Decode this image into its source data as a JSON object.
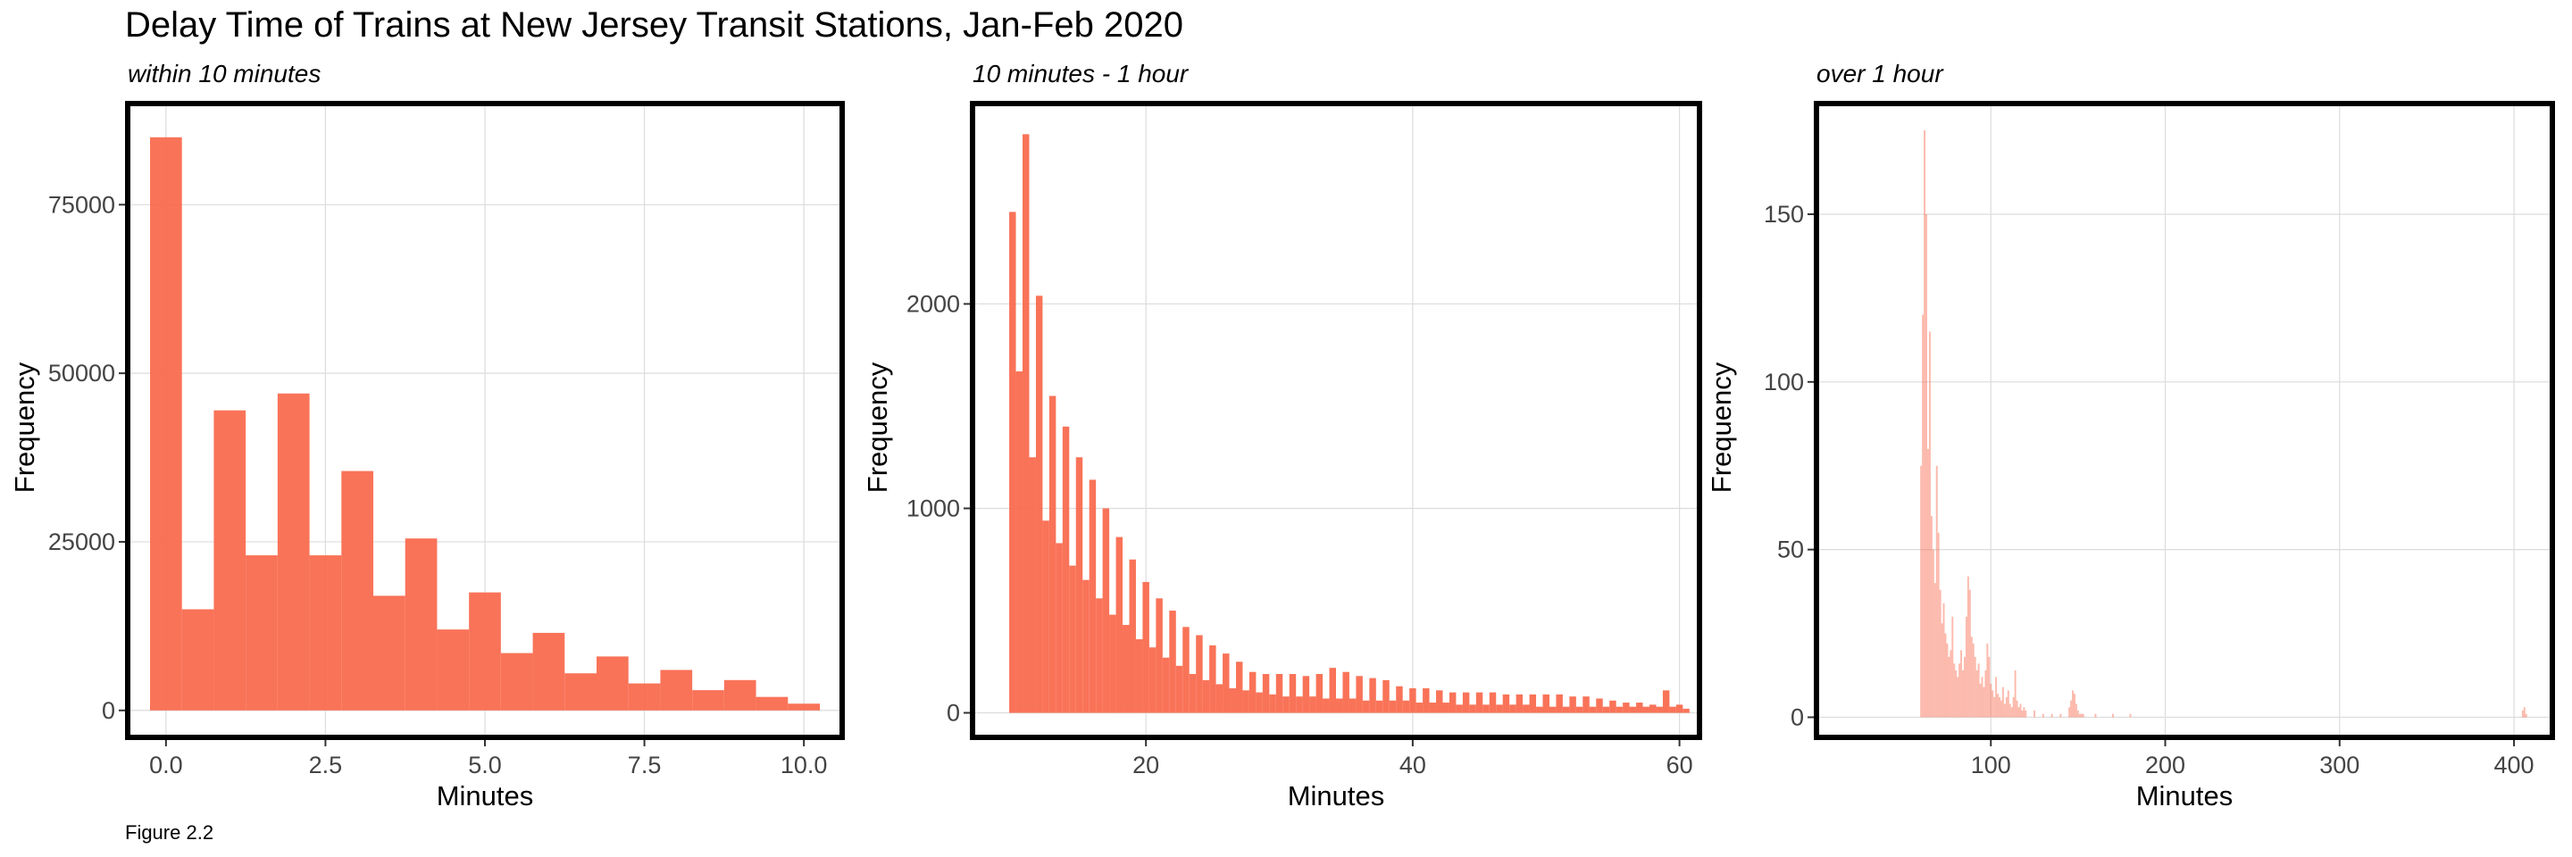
{
  "title": "Delay Time of Trains at New Jersey Transit Stations, Jan-Feb 2020",
  "caption": "Figure 2.2",
  "colors": {
    "bar": "#f8674a",
    "frame": "#000000",
    "grid": "#dcdcdc"
  },
  "chart_data": [
    {
      "type": "bar",
      "subtitle": "within 10 minutes",
      "xlabel": "Minutes",
      "ylabel": "Frequency",
      "xlim": [
        -0.6,
        10.6
      ],
      "ylim": [
        -4000,
        90000
      ],
      "xticks": [
        "0.0",
        "2.5",
        "5.0",
        "7.5",
        "10.0"
      ],
      "xtick_values": [
        0,
        2.5,
        5,
        7.5,
        10
      ],
      "yticks": [
        "0",
        "25000",
        "50000",
        "75000"
      ],
      "ytick_values": [
        0,
        25000,
        50000,
        75000
      ],
      "bin_width": 0.5,
      "x": [
        0,
        0.5,
        1,
        1.5,
        2,
        2.5,
        3,
        3.5,
        4,
        4.5,
        5,
        5.5,
        6,
        6.5,
        7,
        7.5,
        8,
        8.5,
        9,
        9.5,
        10
      ],
      "values": [
        85000,
        15000,
        44500,
        23000,
        47000,
        23000,
        35500,
        17000,
        25500,
        12000,
        17500,
        8500,
        11500,
        5500,
        8000,
        4000,
        6000,
        3000,
        4500,
        2000,
        1000
      ],
      "grid": true,
      "legend": "none"
    },
    {
      "type": "bar",
      "subtitle": "10 minutes - 1 hour",
      "xlabel": "Minutes",
      "ylabel": "Frequency",
      "xlim": [
        7,
        61.5
      ],
      "ylim": [
        -120,
        2980
      ],
      "xticks": [
        "20",
        "40",
        "60"
      ],
      "xtick_values": [
        20,
        40,
        60
      ],
      "yticks": [
        "0",
        "1000",
        "2000"
      ],
      "ytick_values": [
        0,
        1000,
        2000
      ],
      "bin_width": 0.5,
      "x": [
        10,
        10.5,
        11,
        11.5,
        12,
        12.5,
        13,
        13.5,
        14,
        14.5,
        15,
        15.5,
        16,
        16.5,
        17,
        17.5,
        18,
        18.5,
        19,
        19.5,
        20,
        20.5,
        21,
        21.5,
        22,
        22.5,
        23,
        23.5,
        24,
        24.5,
        25,
        25.5,
        26,
        26.5,
        27,
        27.5,
        28,
        28.5,
        29,
        29.5,
        30,
        30.5,
        31,
        31.5,
        32,
        32.5,
        33,
        33.5,
        34,
        34.5,
        35,
        35.5,
        36,
        36.5,
        37,
        37.5,
        38,
        38.5,
        39,
        39.5,
        40,
        40.5,
        41,
        41.5,
        42,
        42.5,
        43,
        43.5,
        44,
        44.5,
        45,
        45.5,
        46,
        46.5,
        47,
        47.5,
        48,
        48.5,
        49,
        49.5,
        50,
        50.5,
        51,
        51.5,
        52,
        52.5,
        53,
        53.5,
        54,
        54.5,
        55,
        55.5,
        56,
        56.5,
        57,
        57.5,
        58,
        58.5,
        59,
        59.5,
        60,
        60.5
      ],
      "values": [
        2450,
        1670,
        2830,
        1250,
        2040,
        940,
        1550,
        830,
        1400,
        720,
        1250,
        650,
        1140,
        560,
        1000,
        480,
        860,
        430,
        750,
        360,
        640,
        320,
        560,
        270,
        500,
        230,
        420,
        190,
        380,
        160,
        330,
        140,
        290,
        120,
        250,
        110,
        200,
        100,
        190,
        90,
        190,
        80,
        190,
        80,
        180,
        80,
        190,
        70,
        220,
        70,
        200,
        70,
        180,
        60,
        170,
        60,
        160,
        60,
        130,
        60,
        120,
        50,
        120,
        50,
        110,
        50,
        100,
        40,
        100,
        40,
        100,
        40,
        100,
        40,
        90,
        40,
        90,
        40,
        90,
        30,
        90,
        30,
        90,
        30,
        80,
        30,
        80,
        30,
        70,
        30,
        60,
        30,
        50,
        30,
        50,
        30,
        40,
        30,
        110,
        30,
        40,
        20
      ],
      "grid": true,
      "legend": "none"
    },
    {
      "type": "bar",
      "subtitle": "over 1 hour",
      "xlabel": "Minutes",
      "ylabel": "Frequency",
      "xlim": [
        0,
        422
      ],
      "ylim": [
        -6,
        183
      ],
      "xticks": [
        "100",
        "200",
        "300",
        "400"
      ],
      "xtick_values": [
        100,
        200,
        300,
        400
      ],
      "yticks": [
        "0",
        "50",
        "100",
        "150"
      ],
      "ytick_values": [
        0,
        50,
        100,
        150
      ],
      "bin_width": 1,
      "x": [
        60,
        61,
        62,
        63,
        64,
        65,
        66,
        67,
        68,
        69,
        70,
        71,
        72,
        73,
        74,
        75,
        76,
        77,
        78,
        79,
        80,
        81,
        82,
        83,
        84,
        85,
        86,
        87,
        88,
        89,
        90,
        91,
        92,
        93,
        94,
        95,
        96,
        97,
        98,
        99,
        100,
        101,
        102,
        103,
        104,
        105,
        106,
        107,
        108,
        109,
        110,
        111,
        112,
        113,
        114,
        115,
        116,
        117,
        118,
        119,
        120,
        125,
        130,
        135,
        140,
        145,
        146,
        147,
        148,
        149,
        150,
        151,
        152,
        153,
        160,
        170,
        180,
        405,
        406,
        407
      ],
      "values": [
        75,
        120,
        175,
        150,
        80,
        115,
        60,
        50,
        40,
        75,
        55,
        38,
        28,
        34,
        25,
        22,
        18,
        20,
        30,
        16,
        14,
        12,
        16,
        20,
        14,
        18,
        30,
        42,
        38,
        24,
        22,
        18,
        14,
        16,
        10,
        12,
        9,
        14,
        22,
        18,
        10,
        8,
        6,
        12,
        7,
        6,
        5,
        9,
        4,
        6,
        8,
        4,
        3,
        6,
        14,
        5,
        3,
        4,
        2,
        3,
        2,
        2,
        1,
        1,
        1,
        3,
        5,
        8,
        7,
        4,
        2,
        1,
        1,
        1,
        1,
        1,
        1,
        2,
        3,
        1
      ],
      "bar_opacity": 0.45,
      "grid": true,
      "legend": "none"
    }
  ]
}
